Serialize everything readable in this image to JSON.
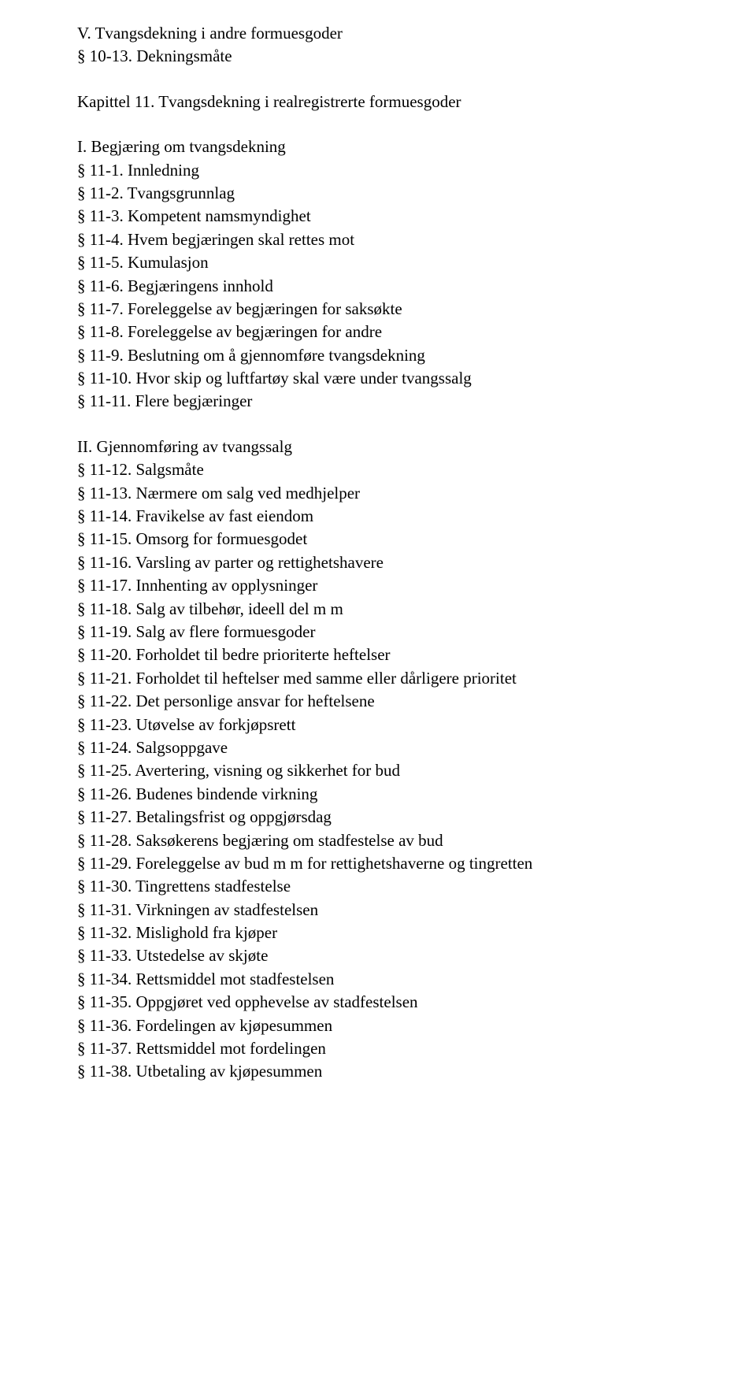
{
  "section5": {
    "heading": "V. Tvangsdekning i andre formuesgoder",
    "entries": [
      "§ 10-13. Dekningsmåte"
    ]
  },
  "chapter11": {
    "heading": "Kapittel 11. Tvangsdekning i realregistrerte formuesgoder",
    "sub1": {
      "heading": "I. Begjæring om tvangsdekning",
      "entries": [
        "§ 11-1. Innledning",
        "§ 11-2. Tvangsgrunnlag",
        "§ 11-3. Kompetent namsmyndighet",
        "§ 11-4. Hvem begjæringen skal rettes mot",
        "§ 11-5. Kumulasjon",
        "§ 11-6. Begjæringens innhold",
        "§ 11-7. Foreleggelse av begjæringen for saksøkte",
        "§ 11-8. Foreleggelse av begjæringen for andre",
        "§ 11-9. Beslutning om å gjennomføre tvangsdekning",
        "§ 11-10. Hvor skip og luftfartøy skal være under tvangssalg",
        "§ 11-11. Flere begjæringer"
      ]
    },
    "sub2": {
      "heading": "II. Gjennomføring av tvangssalg",
      "entries": [
        "§ 11-12. Salgsmåte",
        "§ 11-13. Nærmere om salg ved medhjelper",
        "§ 11-14. Fravikelse av fast eiendom",
        "§ 11-15. Omsorg for formuesgodet",
        "§ 11-16. Varsling av parter og rettighetshavere",
        "§ 11-17. Innhenting av opplysninger",
        "§ 11-18. Salg av tilbehør, ideell del m m",
        "§ 11-19. Salg av flere formuesgoder",
        "§ 11-20. Forholdet til bedre prioriterte heftelser",
        "§ 11-21. Forholdet til heftelser med samme eller dårligere prioritet",
        "§ 11-22. Det personlige ansvar for heftelsene",
        "§ 11-23. Utøvelse av forkjøpsrett",
        "§ 11-24. Salgsoppgave",
        "§ 11-25. Avertering, visning og sikkerhet for bud",
        "§ 11-26. Budenes bindende virkning",
        "§ 11-27. Betalingsfrist og oppgjørsdag",
        "§ 11-28. Saksøkerens begjæring om stadfestelse av bud",
        "§ 11-29. Foreleggelse av bud m m for rettighetshaverne og tingretten",
        "§ 11-30. Tingrettens stadfestelse",
        "§ 11-31. Virkningen av stadfestelsen",
        "§ 11-32. Mislighold fra kjøper",
        "§ 11-33. Utstedelse av skjøte",
        "§ 11-34. Rettsmiddel mot stadfestelsen",
        "§ 11-35. Oppgjøret ved opphevelse av stadfestelsen",
        "§ 11-36. Fordelingen av kjøpesummen",
        "§ 11-37. Rettsmiddel mot fordelingen",
        "§ 11-38. Utbetaling av kjøpesummen"
      ]
    }
  }
}
